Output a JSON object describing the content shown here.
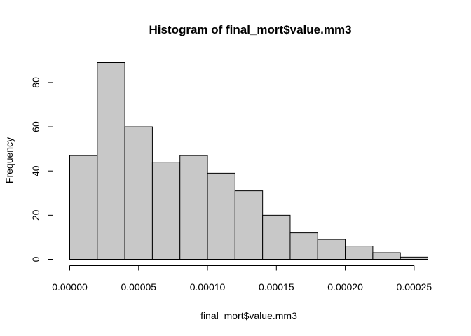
{
  "chart_data": {
    "type": "bar",
    "title": "Histogram of final_mort$value.mm3",
    "xlabel": "final_mort$value.mm3",
    "ylabel": "Frequency",
    "bin_width": 2e-05,
    "bins": [
      {
        "start": 0.0,
        "end": 2e-05,
        "count": 47
      },
      {
        "start": 2e-05,
        "end": 4e-05,
        "count": 89
      },
      {
        "start": 4e-05,
        "end": 6e-05,
        "count": 60
      },
      {
        "start": 6e-05,
        "end": 8e-05,
        "count": 44
      },
      {
        "start": 8e-05,
        "end": 0.0001,
        "count": 47
      },
      {
        "start": 0.0001,
        "end": 0.00012,
        "count": 39
      },
      {
        "start": 0.00012,
        "end": 0.00014,
        "count": 31
      },
      {
        "start": 0.00014,
        "end": 0.00016,
        "count": 20
      },
      {
        "start": 0.00016,
        "end": 0.00018,
        "count": 12
      },
      {
        "start": 0.00018,
        "end": 0.0002,
        "count": 9
      },
      {
        "start": 0.0002,
        "end": 0.00022,
        "count": 6
      },
      {
        "start": 0.00022,
        "end": 0.00024,
        "count": 3
      },
      {
        "start": 0.00024,
        "end": 0.00026,
        "count": 1
      }
    ],
    "xlim": [
      0,
      0.00026
    ],
    "ylim": [
      0,
      89
    ],
    "x_ticks": [
      {
        "value": 0.0,
        "label": "0.00000"
      },
      {
        "value": 5e-05,
        "label": "0.00005"
      },
      {
        "value": 0.0001,
        "label": "0.00010"
      },
      {
        "value": 0.00015,
        "label": "0.00015"
      },
      {
        "value": 0.0002,
        "label": "0.00020"
      },
      {
        "value": 0.00025,
        "label": "0.00025"
      }
    ],
    "y_ticks": [
      {
        "value": 0,
        "label": "0"
      },
      {
        "value": 20,
        "label": "20"
      },
      {
        "value": 40,
        "label": "40"
      },
      {
        "value": 60,
        "label": "60"
      },
      {
        "value": 80,
        "label": "80"
      }
    ],
    "bar_color": "#c8c8c8",
    "border_color": "#000000",
    "grid": false,
    "legend": "none"
  }
}
